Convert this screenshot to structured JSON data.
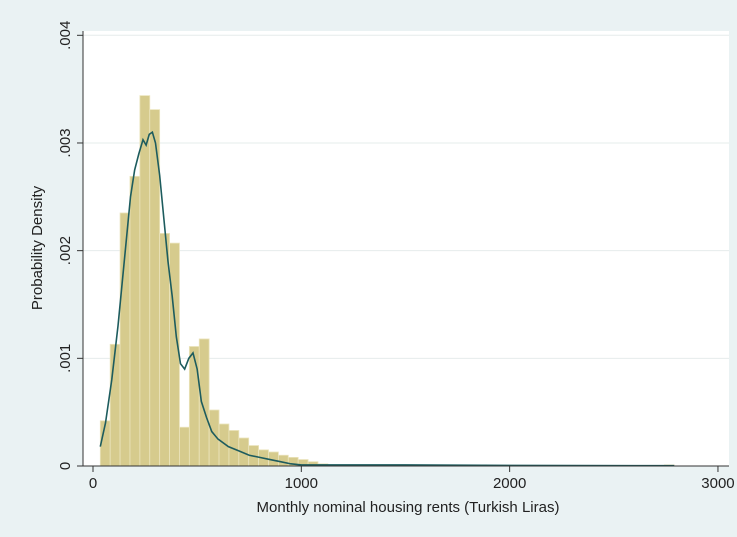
{
  "chart_data": {
    "type": "histogram",
    "xlabel": "Monthly nominal housing rents (Turkish Liras)",
    "ylabel": "Probability Density",
    "bins": [
      35,
      82.5,
      130,
      177.5,
      225,
      272.5,
      320,
      367.5,
      415,
      462.5,
      510,
      557.5,
      605,
      652.5,
      700,
      747.5,
      795,
      842.5,
      890,
      937.5,
      985,
      1032.5,
      1080,
      1127.5,
      1175,
      1222.5,
      1270,
      1317.5,
      1365,
      1412.5,
      1460,
      1507.5,
      1555,
      1602.5,
      1650,
      1697.5,
      1745,
      1792.5,
      1840,
      1887.5,
      1935,
      1982.5,
      2030,
      2077.5,
      2125,
      2172.5,
      2220,
      2267.5,
      2315,
      2362.5,
      2410,
      2457.5,
      2505,
      2552.5,
      2600,
      2647.5,
      2695,
      2742.5,
      2790
    ],
    "values": [
      0.00042,
      0.00113,
      0.00235,
      0.00269,
      0.00344,
      0.00331,
      0.00216,
      0.00207,
      0.00036,
      0.00111,
      0.00118,
      0.00052,
      0.00039,
      0.00033,
      0.00026,
      0.00019,
      0.00015,
      0.00013,
      0.0001,
      8e-05,
      6e-05,
      4e-05,
      2e-05,
      1e-05,
      1e-05,
      1e-05,
      1e-05,
      1e-05,
      1e-05,
      1e-05,
      0,
      1e-05,
      0,
      0,
      0,
      0,
      1e-05,
      0,
      0,
      0,
      0,
      0,
      0,
      0,
      0,
      0,
      0,
      0,
      0,
      0,
      0,
      0,
      0,
      0,
      0,
      0,
      0,
      1e-05
    ],
    "color": "#d6cb8d",
    "density": {
      "color": "#1d5c5e",
      "x": [
        35,
        60,
        90,
        120,
        150,
        180,
        200,
        220,
        240,
        255,
        270,
        285,
        300,
        320,
        340,
        360,
        380,
        400,
        420,
        440,
        460,
        480,
        500,
        520,
        545,
        570,
        600,
        650,
        700,
        750,
        800,
        850,
        900,
        950,
        1000,
        1100,
        1500,
        2000,
        2790
      ],
      "values": [
        0.00018,
        0.0004,
        0.0008,
        0.0013,
        0.0019,
        0.0025,
        0.00275,
        0.0029,
        0.00303,
        0.00298,
        0.00308,
        0.0031,
        0.003,
        0.0027,
        0.0023,
        0.0019,
        0.00158,
        0.0012,
        0.00095,
        0.0009,
        0.001,
        0.00105,
        0.0009,
        0.0006,
        0.00045,
        0.00032,
        0.00025,
        0.00018,
        0.00014,
        0.0001,
        8e-05,
        6e-05,
        4e-05,
        2e-05,
        1e-05,
        1e-05,
        1e-05,
        5e-06,
        3e-06
      ]
    },
    "xlim": [
      -48,
      3053
    ],
    "ylim": [
      0,
      0.00404
    ],
    "xticks": [
      0,
      1000,
      2000,
      3000
    ],
    "yticks": [
      0,
      {
        "value": 0.001,
        "label": ".001"
      },
      {
        "value": 0.002,
        "label": ".002"
      },
      {
        "value": 0.003,
        "label": ".003"
      },
      {
        "value": 0.004,
        "label": ".004"
      }
    ],
    "grid": true
  }
}
